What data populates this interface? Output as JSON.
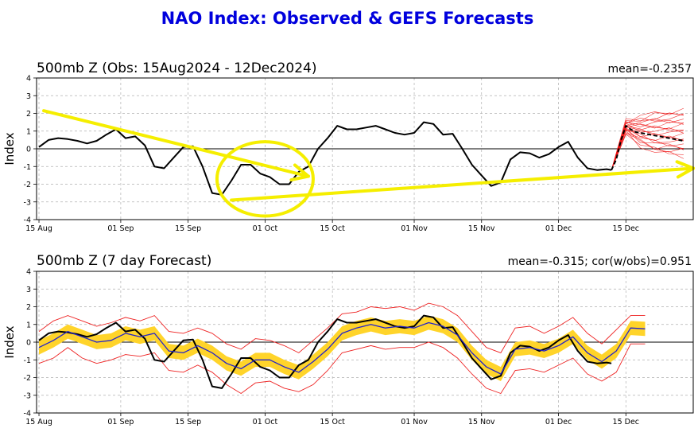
{
  "title": "NAO Index: Observed & GEFS Forecasts",
  "chart_data": [
    {
      "type": "line",
      "title": "500mb Z (Obs: 15Aug2024 - 12Dec2024)",
      "stat": "mean=-0.2357",
      "ylabel": "Index",
      "ylim": [
        -4,
        4
      ],
      "yticks": [
        "4",
        "3",
        "2",
        "1",
        "0",
        "-1",
        "-2",
        "-3",
        "-4"
      ],
      "xticks": [
        "15 Aug",
        "01 Sep",
        "15 Sep",
        "01 Oct",
        "15 Oct",
        "01 Nov",
        "15 Nov",
        "01 Dec",
        "15 Dec"
      ],
      "grid": true,
      "series": [
        {
          "role": "observed",
          "color": "#000000",
          "x": [
            "2024-08-15",
            "2024-08-17",
            "2024-08-19",
            "2024-08-21",
            "2024-08-23",
            "2024-08-25",
            "2024-08-27",
            "2024-08-29",
            "2024-08-31",
            "2024-09-02",
            "2024-09-04",
            "2024-09-06",
            "2024-09-08",
            "2024-09-10",
            "2024-09-12",
            "2024-09-14",
            "2024-09-16",
            "2024-09-18",
            "2024-09-20",
            "2024-09-22",
            "2024-09-24",
            "2024-09-26",
            "2024-09-28",
            "2024-09-30",
            "2024-10-02",
            "2024-10-04",
            "2024-10-06",
            "2024-10-08",
            "2024-10-10",
            "2024-10-12",
            "2024-10-14",
            "2024-10-16",
            "2024-10-18",
            "2024-10-20",
            "2024-10-22",
            "2024-10-24",
            "2024-10-26",
            "2024-10-28",
            "2024-10-30",
            "2024-11-01",
            "2024-11-03",
            "2024-11-05",
            "2024-11-07",
            "2024-11-09",
            "2024-11-11",
            "2024-11-13",
            "2024-11-15",
            "2024-11-17",
            "2024-11-19",
            "2024-11-21",
            "2024-11-23",
            "2024-11-25",
            "2024-11-27",
            "2024-11-29",
            "2024-12-01",
            "2024-12-03",
            "2024-12-05",
            "2024-12-07",
            "2024-12-09",
            "2024-12-11",
            "2024-12-12"
          ],
          "y": [
            0.1,
            0.5,
            0.6,
            0.55,
            0.45,
            0.3,
            0.45,
            0.8,
            1.1,
            0.6,
            0.7,
            0.2,
            -1.0,
            -1.1,
            -0.5,
            0.1,
            0.15,
            -1.0,
            -2.5,
            -2.6,
            -1.8,
            -0.9,
            -0.9,
            -1.4,
            -1.6,
            -2.0,
            -2.0,
            -1.3,
            -1.0,
            0.0,
            0.6,
            1.3,
            1.1,
            1.1,
            1.2,
            1.3,
            1.1,
            0.9,
            0.8,
            0.9,
            1.5,
            1.4,
            0.8,
            0.85,
            0.0,
            -0.9,
            -1.5,
            -2.1,
            -1.9,
            -0.6,
            -0.2,
            -0.25,
            -0.5,
            -0.3,
            0.1,
            0.4,
            -0.5,
            -1.1,
            -1.2,
            -1.15,
            -1.2
          ]
        },
        {
          "role": "ensemble-mean",
          "color": "#000000",
          "dash": true,
          "x": [
            "2024-12-12",
            "2024-12-13",
            "2024-12-14",
            "2024-12-15",
            "2024-12-16",
            "2024-12-17",
            "2024-12-18",
            "2024-12-19",
            "2024-12-20",
            "2024-12-21",
            "2024-12-22",
            "2024-12-23",
            "2024-12-24",
            "2024-12-25",
            "2024-12-26",
            "2024-12-27"
          ],
          "y": [
            -1.2,
            -0.6,
            0.5,
            1.3,
            1.1,
            0.95,
            0.9,
            0.85,
            0.8,
            0.75,
            0.7,
            0.65,
            0.6,
            0.55,
            0.5,
            0.45
          ]
        }
      ],
      "ensemble_members": 21,
      "ensemble_spread": {
        "x": [
          "2024-12-12",
          "2024-12-15",
          "2024-12-18",
          "2024-12-21",
          "2024-12-24",
          "2024-12-27"
        ],
        "low": [
          -1.2,
          0.9,
          0.2,
          -0.2,
          -0.3,
          -0.4
        ],
        "high": [
          -1.2,
          1.6,
          1.8,
          2.0,
          2.1,
          2.2
        ]
      },
      "annotations": [
        {
          "kind": "arrow",
          "color": "#f5ee00",
          "from": [
            "2024-08-16",
            2.15
          ],
          "to": [
            "2024-10-10",
            -1.55
          ]
        },
        {
          "kind": "arrow",
          "color": "#f5ee00",
          "from": [
            "2024-09-24",
            -2.9
          ],
          "to": [
            "2024-12-29",
            -1.1
          ]
        },
        {
          "kind": "ellipse",
          "color": "#f5ee00",
          "center": [
            "2024-10-01",
            -1.7
          ],
          "half_width_days": 10,
          "half_height": 2.1
        }
      ]
    },
    {
      "type": "line",
      "title": "500mb Z (7 day Forecast)",
      "stat": "mean=-0.315; cor(w/obs)=0.951",
      "ylabel": "Index",
      "ylim": [
        -4,
        4
      ],
      "yticks": [
        "4",
        "3",
        "2",
        "1",
        "0",
        "-1",
        "-2",
        "-3",
        "-4"
      ],
      "xticks": [
        "15 Aug",
        "01 Sep",
        "15 Sep",
        "01 Oct",
        "15 Oct",
        "01 Nov",
        "15 Nov",
        "01 Dec",
        "15 Dec"
      ],
      "grid": true,
      "series": [
        {
          "role": "observed",
          "color": "#000000",
          "x": [
            "2024-08-15",
            "2024-08-17",
            "2024-08-19",
            "2024-08-21",
            "2024-08-23",
            "2024-08-25",
            "2024-08-27",
            "2024-08-29",
            "2024-08-31",
            "2024-09-02",
            "2024-09-04",
            "2024-09-06",
            "2024-09-08",
            "2024-09-10",
            "2024-09-12",
            "2024-09-14",
            "2024-09-16",
            "2024-09-18",
            "2024-09-20",
            "2024-09-22",
            "2024-09-24",
            "2024-09-26",
            "2024-09-28",
            "2024-09-30",
            "2024-10-02",
            "2024-10-04",
            "2024-10-06",
            "2024-10-08",
            "2024-10-10",
            "2024-10-12",
            "2024-10-14",
            "2024-10-16",
            "2024-10-18",
            "2024-10-20",
            "2024-10-22",
            "2024-10-24",
            "2024-10-26",
            "2024-10-28",
            "2024-10-30",
            "2024-11-01",
            "2024-11-03",
            "2024-11-05",
            "2024-11-07",
            "2024-11-09",
            "2024-11-11",
            "2024-11-13",
            "2024-11-15",
            "2024-11-17",
            "2024-11-19",
            "2024-11-21",
            "2024-11-23",
            "2024-11-25",
            "2024-11-27",
            "2024-11-29",
            "2024-12-01",
            "2024-12-03",
            "2024-12-05",
            "2024-12-07",
            "2024-12-09",
            "2024-12-11",
            "2024-12-12"
          ],
          "y": [
            0.1,
            0.5,
            0.6,
            0.55,
            0.45,
            0.3,
            0.45,
            0.8,
            1.1,
            0.6,
            0.7,
            0.2,
            -1.0,
            -1.1,
            -0.5,
            0.1,
            0.15,
            -1.0,
            -2.5,
            -2.6,
            -1.8,
            -0.9,
            -0.9,
            -1.4,
            -1.6,
            -2.0,
            -2.0,
            -1.3,
            -1.0,
            0.0,
            0.6,
            1.3,
            1.1,
            1.1,
            1.2,
            1.3,
            1.1,
            0.9,
            0.8,
            0.9,
            1.5,
            1.4,
            0.8,
            0.85,
            0.0,
            -0.9,
            -1.5,
            -2.1,
            -1.9,
            -0.6,
            -0.2,
            -0.25,
            -0.5,
            -0.3,
            0.1,
            0.4,
            -0.5,
            -1.1,
            -1.2,
            -1.15,
            -1.2
          ]
        },
        {
          "role": "forecast-mean",
          "color": "#2222cc",
          "x": [
            "2024-08-15",
            "2024-08-18",
            "2024-08-21",
            "2024-08-24",
            "2024-08-27",
            "2024-08-30",
            "2024-09-02",
            "2024-09-05",
            "2024-09-08",
            "2024-09-11",
            "2024-09-14",
            "2024-09-17",
            "2024-09-20",
            "2024-09-23",
            "2024-09-26",
            "2024-09-29",
            "2024-10-02",
            "2024-10-05",
            "2024-10-08",
            "2024-10-11",
            "2024-10-14",
            "2024-10-17",
            "2024-10-20",
            "2024-10-23",
            "2024-10-26",
            "2024-10-29",
            "2024-11-01",
            "2024-11-04",
            "2024-11-07",
            "2024-11-10",
            "2024-11-13",
            "2024-11-16",
            "2024-11-19",
            "2024-11-22",
            "2024-11-25",
            "2024-11-28",
            "2024-12-01",
            "2024-12-04",
            "2024-12-07",
            "2024-12-10",
            "2024-12-13",
            "2024-12-16",
            "2024-12-19"
          ],
          "y": [
            -0.3,
            0.1,
            0.6,
            0.3,
            0.0,
            0.1,
            0.5,
            0.3,
            0.5,
            -0.5,
            -0.6,
            -0.2,
            -0.6,
            -1.2,
            -1.5,
            -1.0,
            -1.0,
            -1.4,
            -1.7,
            -1.1,
            -0.4,
            0.5,
            0.8,
            1.0,
            0.8,
            0.9,
            0.8,
            1.1,
            0.9,
            0.4,
            -0.6,
            -1.4,
            -1.8,
            -0.4,
            -0.3,
            -0.5,
            -0.2,
            0.3,
            -0.6,
            -1.1,
            -0.5,
            0.8,
            0.75
          ]
        }
      ],
      "band_inner": {
        "color": "#ffd42a",
        "x": [
          "2024-08-15",
          "2024-08-18",
          "2024-08-21",
          "2024-08-24",
          "2024-08-27",
          "2024-08-30",
          "2024-09-02",
          "2024-09-05",
          "2024-09-08",
          "2024-09-11",
          "2024-09-14",
          "2024-09-17",
          "2024-09-20",
          "2024-09-23",
          "2024-09-26",
          "2024-09-29",
          "2024-10-02",
          "2024-10-05",
          "2024-10-08",
          "2024-10-11",
          "2024-10-14",
          "2024-10-17",
          "2024-10-20",
          "2024-10-23",
          "2024-10-26",
          "2024-10-29",
          "2024-11-01",
          "2024-11-04",
          "2024-11-07",
          "2024-11-10",
          "2024-11-13",
          "2024-11-16",
          "2024-11-19",
          "2024-11-22",
          "2024-11-25",
          "2024-11-28",
          "2024-12-01",
          "2024-12-04",
          "2024-12-07",
          "2024-12-10",
          "2024-12-13",
          "2024-12-16",
          "2024-12-19"
        ],
        "low": [
          -0.7,
          -0.3,
          0.2,
          -0.1,
          -0.4,
          -0.3,
          0.1,
          -0.1,
          0.1,
          -0.9,
          -1.0,
          -0.6,
          -1.0,
          -1.6,
          -1.9,
          -1.4,
          -1.4,
          -1.8,
          -2.1,
          -1.5,
          -0.8,
          0.1,
          0.4,
          0.6,
          0.4,
          0.5,
          0.4,
          0.7,
          0.5,
          0.0,
          -1.0,
          -1.8,
          -2.2,
          -0.8,
          -0.7,
          -0.9,
          -0.6,
          -0.1,
          -1.0,
          -1.5,
          -0.9,
          0.4,
          0.35
        ],
        "high": [
          0.1,
          0.5,
          1.0,
          0.7,
          0.4,
          0.5,
          0.9,
          0.7,
          0.9,
          -0.1,
          -0.2,
          0.2,
          -0.2,
          -0.8,
          -1.1,
          -0.6,
          -0.6,
          -1.0,
          -1.3,
          -0.7,
          0.0,
          0.9,
          1.2,
          1.4,
          1.2,
          1.3,
          1.2,
          1.5,
          1.3,
          0.8,
          -0.2,
          -1.0,
          -1.4,
          0.0,
          0.1,
          -0.1,
          0.2,
          0.7,
          -0.2,
          -0.7,
          -0.1,
          1.2,
          1.15
        ]
      },
      "band_outer": {
        "color": "#ee2222",
        "x": [
          "2024-08-15",
          "2024-08-18",
          "2024-08-21",
          "2024-08-24",
          "2024-08-27",
          "2024-08-30",
          "2024-09-02",
          "2024-09-05",
          "2024-09-08",
          "2024-09-11",
          "2024-09-14",
          "2024-09-17",
          "2024-09-20",
          "2024-09-23",
          "2024-09-26",
          "2024-09-29",
          "2024-10-02",
          "2024-10-05",
          "2024-10-08",
          "2024-10-11",
          "2024-10-14",
          "2024-10-17",
          "2024-10-20",
          "2024-10-23",
          "2024-10-26",
          "2024-10-29",
          "2024-11-01",
          "2024-11-04",
          "2024-11-07",
          "2024-11-10",
          "2024-11-13",
          "2024-11-16",
          "2024-11-19",
          "2024-11-22",
          "2024-11-25",
          "2024-11-28",
          "2024-12-01",
          "2024-12-04",
          "2024-12-07",
          "2024-12-10",
          "2024-12-13",
          "2024-12-16",
          "2024-12-19"
        ],
        "low": [
          -1.2,
          -0.9,
          -0.3,
          -0.9,
          -1.2,
          -1.0,
          -0.7,
          -0.8,
          -0.6,
          -1.6,
          -1.7,
          -1.3,
          -1.7,
          -2.4,
          -2.9,
          -2.3,
          -2.2,
          -2.6,
          -2.8,
          -2.4,
          -1.6,
          -0.6,
          -0.4,
          -0.2,
          -0.4,
          -0.3,
          -0.3,
          0.0,
          -0.3,
          -0.9,
          -1.8,
          -2.6,
          -2.9,
          -1.6,
          -1.5,
          -1.7,
          -1.3,
          -0.9,
          -1.8,
          -2.2,
          -1.7,
          -0.1,
          -0.1
        ],
        "high": [
          0.6,
          1.2,
          1.5,
          1.2,
          0.9,
          1.1,
          1.4,
          1.2,
          1.5,
          0.6,
          0.5,
          0.8,
          0.5,
          -0.1,
          -0.4,
          0.2,
          0.1,
          -0.2,
          -0.6,
          0.1,
          0.8,
          1.6,
          1.7,
          2.0,
          1.9,
          2.0,
          1.8,
          2.2,
          2.0,
          1.5,
          0.6,
          -0.3,
          -0.6,
          0.8,
          0.9,
          0.5,
          0.9,
          1.4,
          0.5,
          -0.1,
          0.7,
          1.5,
          1.5
        ]
      }
    }
  ]
}
